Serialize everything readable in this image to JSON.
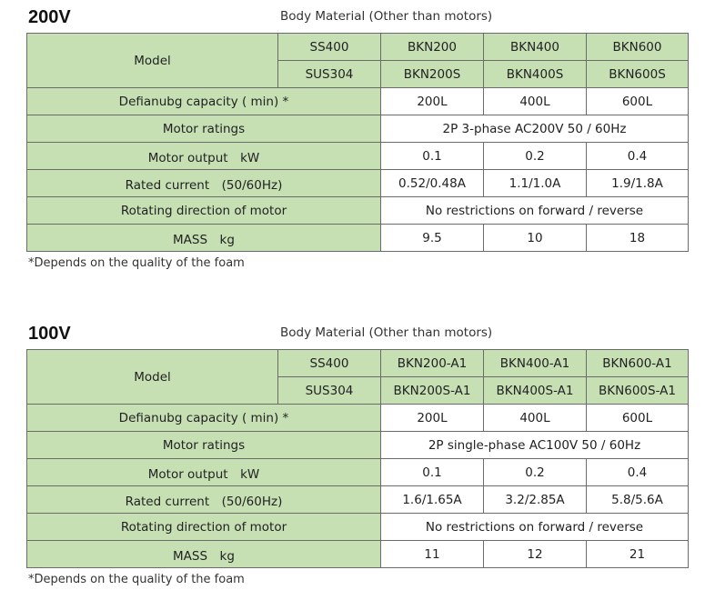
{
  "sections": [
    {
      "voltage": "200V",
      "body_material": "Body Material (Other than motors)",
      "model_label": "Model",
      "materials": [
        {
          "name": "SS400",
          "models": [
            "BKN200",
            "BKN400",
            "BKN600"
          ]
        },
        {
          "name": "SUS304",
          "models": [
            "BKN200S",
            "BKN400S",
            "BKN600S"
          ]
        }
      ],
      "rows": {
        "capacity": {
          "label": "Defianubg capacity ( min) *",
          "values": [
            "200L",
            "400L",
            "600L"
          ]
        },
        "ratings": {
          "label": "Motor ratings",
          "value": "2P 3-phase AC200V 50 / 60Hz"
        },
        "output": {
          "label": "Motor output　kW",
          "values": [
            "0.1",
            "0.2",
            "0.4"
          ]
        },
        "current": {
          "label": "Rated current　(50/60Hz)",
          "values": [
            "0.52/0.48A",
            "1.1/1.0A",
            "1.9/1.8A"
          ]
        },
        "direction": {
          "label": "Rotating direction of motor",
          "value": "No restrictions on forward / reverse"
        },
        "mass": {
          "label": "MASS　kg",
          "values": [
            "9.5",
            "10",
            "18"
          ]
        }
      },
      "footnote": "*Depends on the quality of the foam"
    },
    {
      "voltage": "100V",
      "body_material": "Body Material (Other than motors)",
      "model_label": "Model",
      "materials": [
        {
          "name": "SS400",
          "models": [
            "BKN200-A1",
            "BKN400-A1",
            "BKN600-A1"
          ]
        },
        {
          "name": "SUS304",
          "models": [
            "BKN200S-A1",
            "BKN400S-A1",
            "BKN600S-A1"
          ]
        }
      ],
      "rows": {
        "capacity": {
          "label": "Defianubg capacity ( min) *",
          "values": [
            "200L",
            "400L",
            "600L"
          ]
        },
        "ratings": {
          "label": "Motor ratings",
          "value": "2P single-phase AC100V 50 / 60Hz"
        },
        "output": {
          "label": "Motor output　kW",
          "values": [
            "0.1",
            "0.2",
            "0.4"
          ]
        },
        "current": {
          "label": "Rated current　(50/60Hz)",
          "values": [
            "1.6/1.65A",
            "3.2/2.85A",
            "5.8/5.6A"
          ]
        },
        "direction": {
          "label": "Rotating direction of motor",
          "value": "No restrictions on forward / reverse"
        },
        "mass": {
          "label": "MASS　kg",
          "values": [
            "11",
            "12",
            "21"
          ]
        }
      },
      "footnote": "*Depends on the quality of the foam"
    }
  ],
  "colors": {
    "header_green": "#c6e0b4",
    "border": "#6b6b6b"
  }
}
